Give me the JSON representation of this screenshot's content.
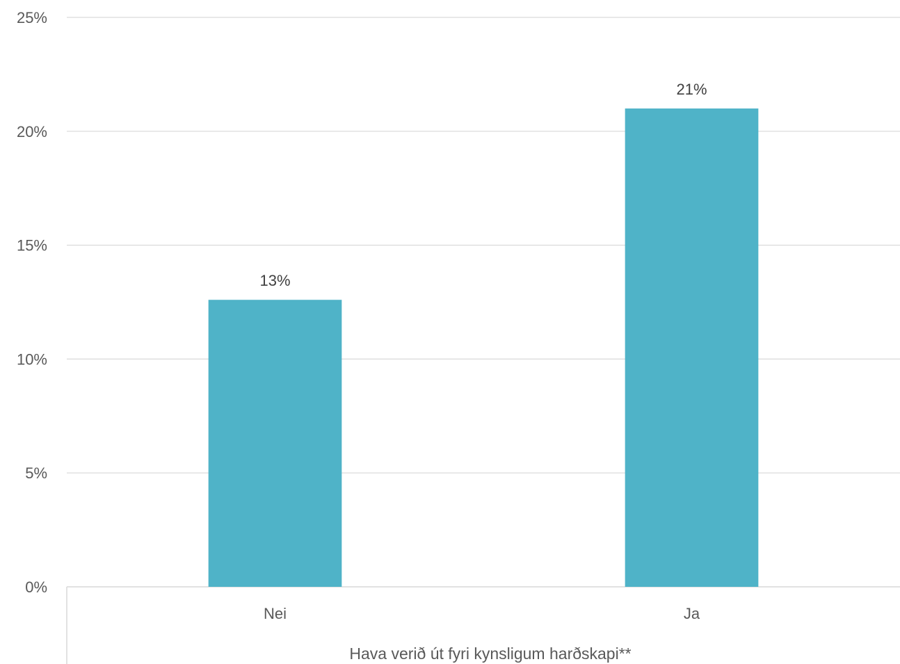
{
  "chart_data": {
    "type": "bar",
    "categories": [
      "Nei",
      "Ja"
    ],
    "values": [
      12.6,
      21.0
    ],
    "data_labels": [
      "13%",
      "21%"
    ],
    "title": "",
    "xlabel": "Hava verið út fyri kynsligum harðskapi**",
    "ylabel": "",
    "ylim": [
      0,
      25
    ],
    "yticks": [
      0,
      5,
      10,
      15,
      20,
      25
    ],
    "ytick_labels": [
      "0%",
      "5%",
      "10%",
      "15%",
      "20%",
      "25%"
    ],
    "grid": true,
    "legend": false,
    "bar_color": "#4fb3c8",
    "gridline_color": "#d9d9d9"
  }
}
